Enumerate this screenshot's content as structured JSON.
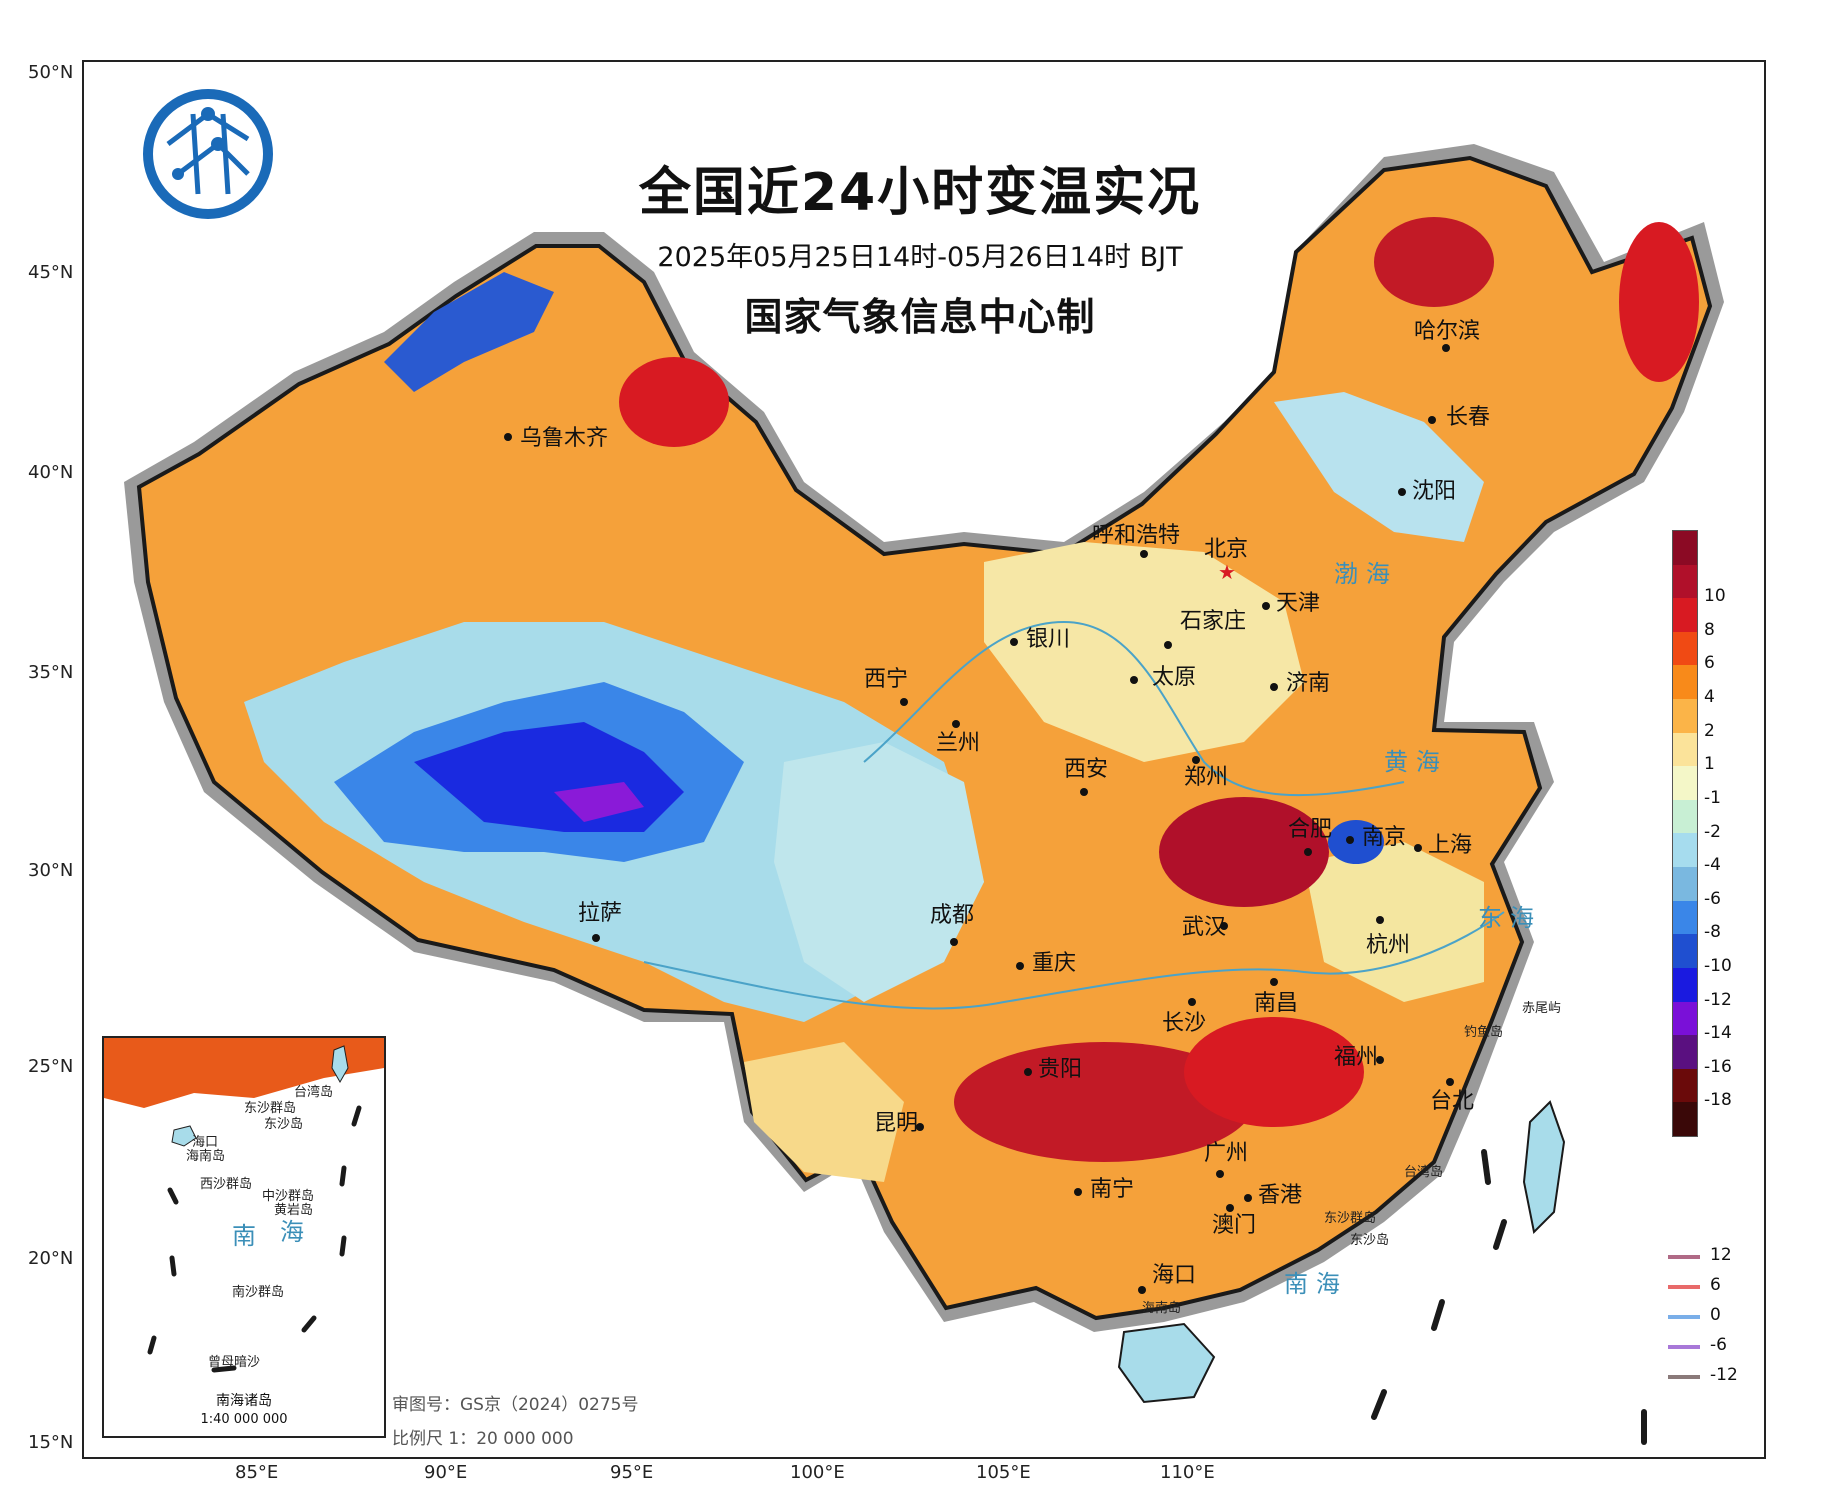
{
  "map": {
    "title": "全国近24小时变温实况",
    "subtitle": "2025年05月25日14时-05月26日14时 BJT",
    "issuer": "国家气象信息中心制",
    "approval_number": "审图号：GS京（2024）0275号",
    "scale_text": "比例尺 1：20 000 000",
    "latitude_labels": [
      "50°N",
      "45°N",
      "40°N",
      "35°N",
      "30°N",
      "25°N",
      "20°N",
      "15°N"
    ],
    "longitude_labels": [
      "85°E",
      "90°E",
      "95°E",
      "100°E",
      "105°E",
      "110°E"
    ],
    "capital": "北京",
    "cities": [
      "乌鲁木齐",
      "哈尔滨",
      "长春",
      "沈阳",
      "呼和浩特",
      "天津",
      "石家庄",
      "银川",
      "太原",
      "济南",
      "西宁",
      "兰州",
      "西安",
      "郑州",
      "合肥",
      "南京",
      "上海",
      "拉萨",
      "成都",
      "武汉",
      "杭州",
      "重庆",
      "长沙",
      "南昌",
      "贵阳",
      "福州",
      "台北",
      "昆明",
      "南宁",
      "广州",
      "香港",
      "澳门",
      "海口"
    ],
    "seas": {
      "bohai": "渤海",
      "huanghai": "黄海",
      "donghai": "东海",
      "nanhai": "南海"
    },
    "islands": [
      "钓鱼岛",
      "赤尾屿",
      "台湾岛",
      "东沙群岛",
      "东沙岛",
      "海南岛"
    ],
    "inset": {
      "title": "南海诸岛",
      "scale": "1:40 000 000",
      "labels": [
        "台湾岛",
        "东沙群岛",
        "东沙岛",
        "海口",
        "海南岛",
        "西沙群岛",
        "中沙群岛",
        "黄岩岛",
        "南",
        "海",
        "南沙群岛",
        "曾母暗沙"
      ]
    }
  },
  "legend": {
    "colorbar": [
      {
        "label": "",
        "color": "#8b0a24"
      },
      {
        "label": "10",
        "color": "#b0102a"
      },
      {
        "label": "8",
        "color": "#d81a22"
      },
      {
        "label": "6",
        "color": "#f04a14"
      },
      {
        "label": "4",
        "color": "#f88a1a"
      },
      {
        "label": "2",
        "color": "#fbb448"
      },
      {
        "label": "1",
        "color": "#fbe39a"
      },
      {
        "label": "-1",
        "color": "#f4f7c8"
      },
      {
        "label": "-2",
        "color": "#c8efd4"
      },
      {
        "label": "-4",
        "color": "#a6dcee"
      },
      {
        "label": "-6",
        "color": "#7ab8e0"
      },
      {
        "label": "-8",
        "color": "#3a86e8"
      },
      {
        "label": "-10",
        "color": "#1f4fd0"
      },
      {
        "label": "-12",
        "color": "#1a1ae0"
      },
      {
        "label": "-14",
        "color": "#7a10d8"
      },
      {
        "label": "-16",
        "color": "#5a1080"
      },
      {
        "label": "-18",
        "color": "#6a0a0a"
      },
      {
        "label": "",
        "color": "#3a0808"
      }
    ],
    "contour_lines": [
      {
        "label": "12",
        "color": "#b06a86"
      },
      {
        "label": "6",
        "color": "#e86a6a"
      },
      {
        "label": "0",
        "color": "#7aaee8"
      },
      {
        "label": "-6",
        "color": "#a878d8"
      },
      {
        "label": "-12",
        "color": "#8a7a7a"
      }
    ]
  }
}
